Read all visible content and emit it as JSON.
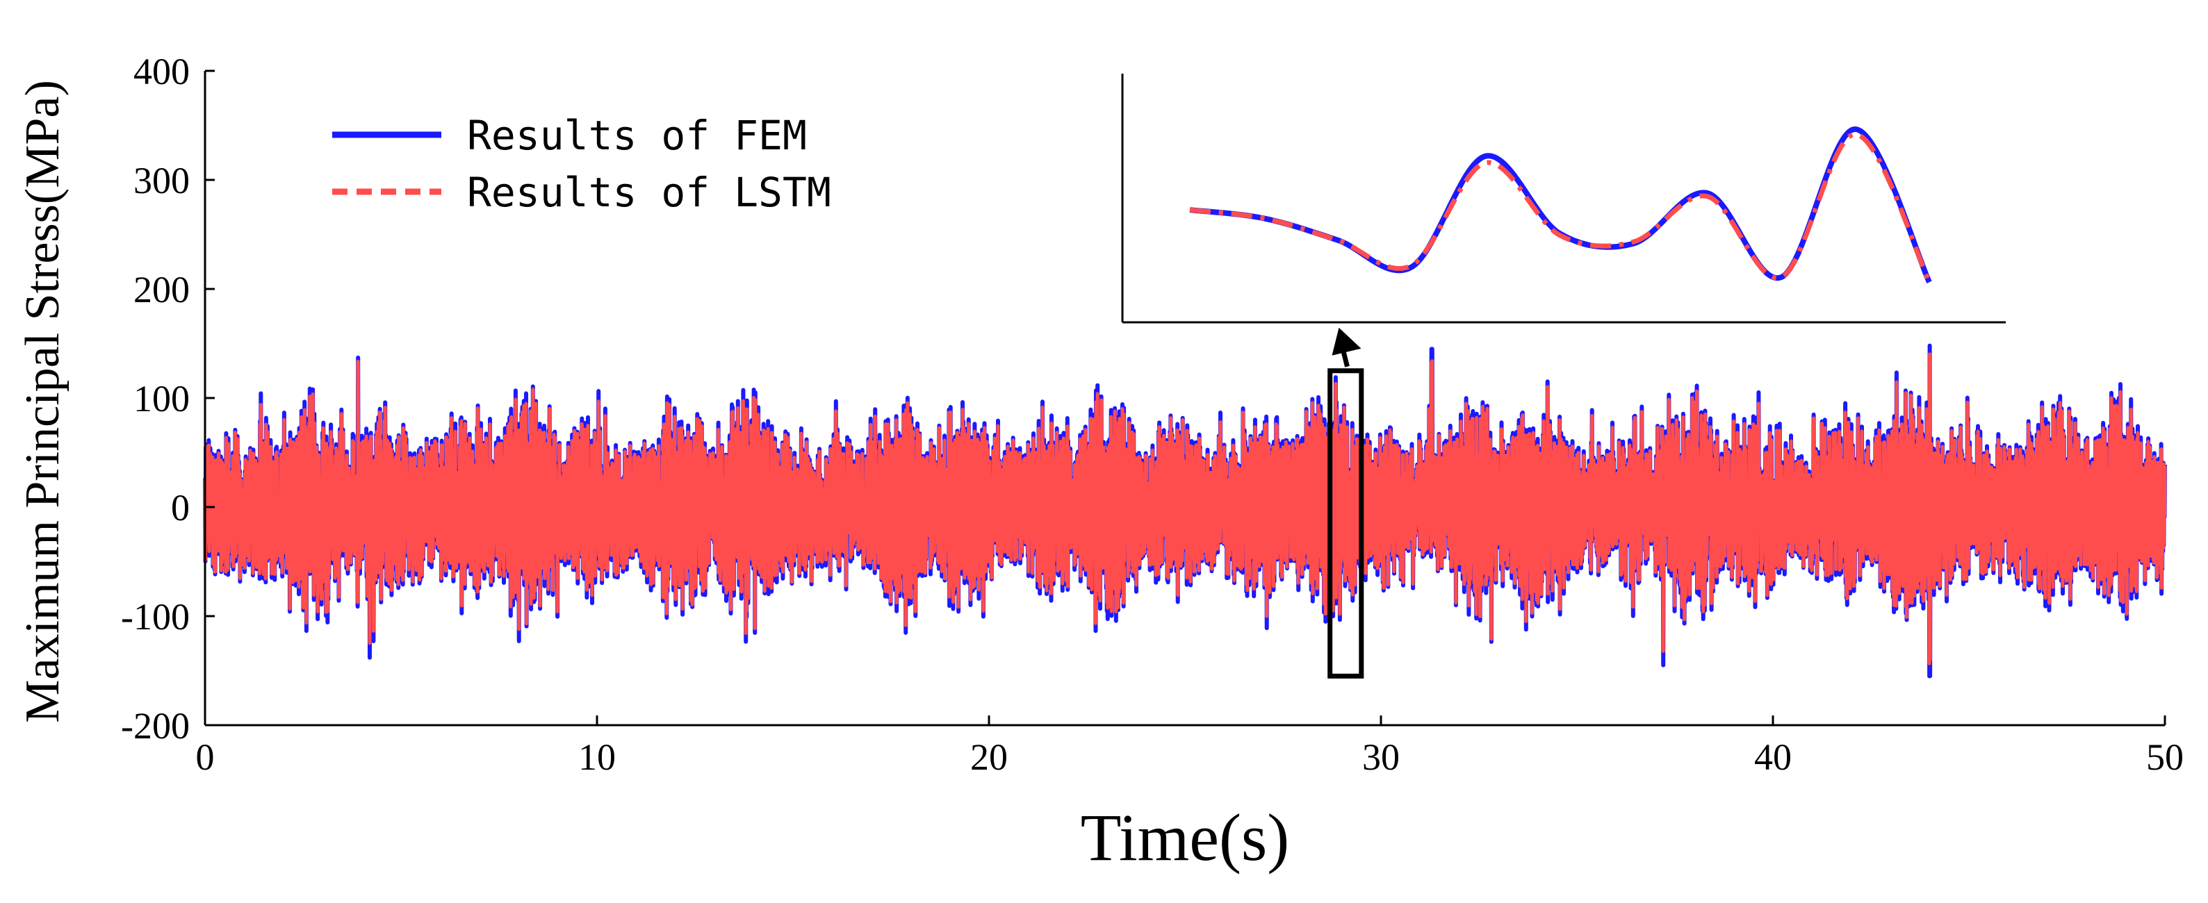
{
  "chart_data": [
    {
      "type": "line",
      "xlabel": "Time(s)",
      "ylabel": "Maximum Principal Stress(MPa)",
      "xlim": [
        0,
        50
      ],
      "ylim": [
        -200,
        400
      ],
      "xticks": [
        "0",
        "10",
        "20",
        "30",
        "40",
        "50"
      ],
      "yticks": [
        "-200",
        "-100",
        "0",
        "100",
        "200",
        "300",
        "400"
      ],
      "grid": false,
      "legend_position": "top-left",
      "series": [
        {
          "name": "Results of FEM",
          "color": "#1a1aff",
          "style": "solid"
        },
        {
          "name": "Results of LSTM",
          "color": "#ff4d4d",
          "style": "dashed"
        }
      ],
      "signal_summary": {
        "envelope": {
          "typical_max": 100,
          "typical_min": -100,
          "peak_max": 150,
          "peak_min": -155
        },
        "extreme_peaks": [
          {
            "x": 3.9,
            "y": 137
          },
          {
            "x": 4.2,
            "y": -138
          },
          {
            "x": 31.3,
            "y": 145
          },
          {
            "x": 37.2,
            "y": -145
          },
          {
            "x": 44.0,
            "y": 148
          },
          {
            "x": 44.0,
            "y": -155
          }
        ]
      },
      "zoom_window": {
        "x_range": [
          28.7,
          29.5
        ],
        "y_range": [
          -155,
          125
        ]
      }
    },
    {
      "type": "line",
      "role": "inset-zoom",
      "series": [
        {
          "name": "Results of FEM",
          "color": "#1a1aff",
          "style": "solid",
          "values": [
            0.52,
            0.47,
            0.34,
            0.18,
            0.84,
            0.38,
            0.32,
            0.62,
            0.12,
            1.0,
            0.09
          ]
        },
        {
          "name": "Results of LSTM",
          "color": "#ff4d4d",
          "style": "dash-dot",
          "values": [
            0.52,
            0.47,
            0.34,
            0.19,
            0.8,
            0.37,
            0.33,
            0.6,
            0.12,
            0.97,
            0.09
          ]
        }
      ]
    }
  ]
}
